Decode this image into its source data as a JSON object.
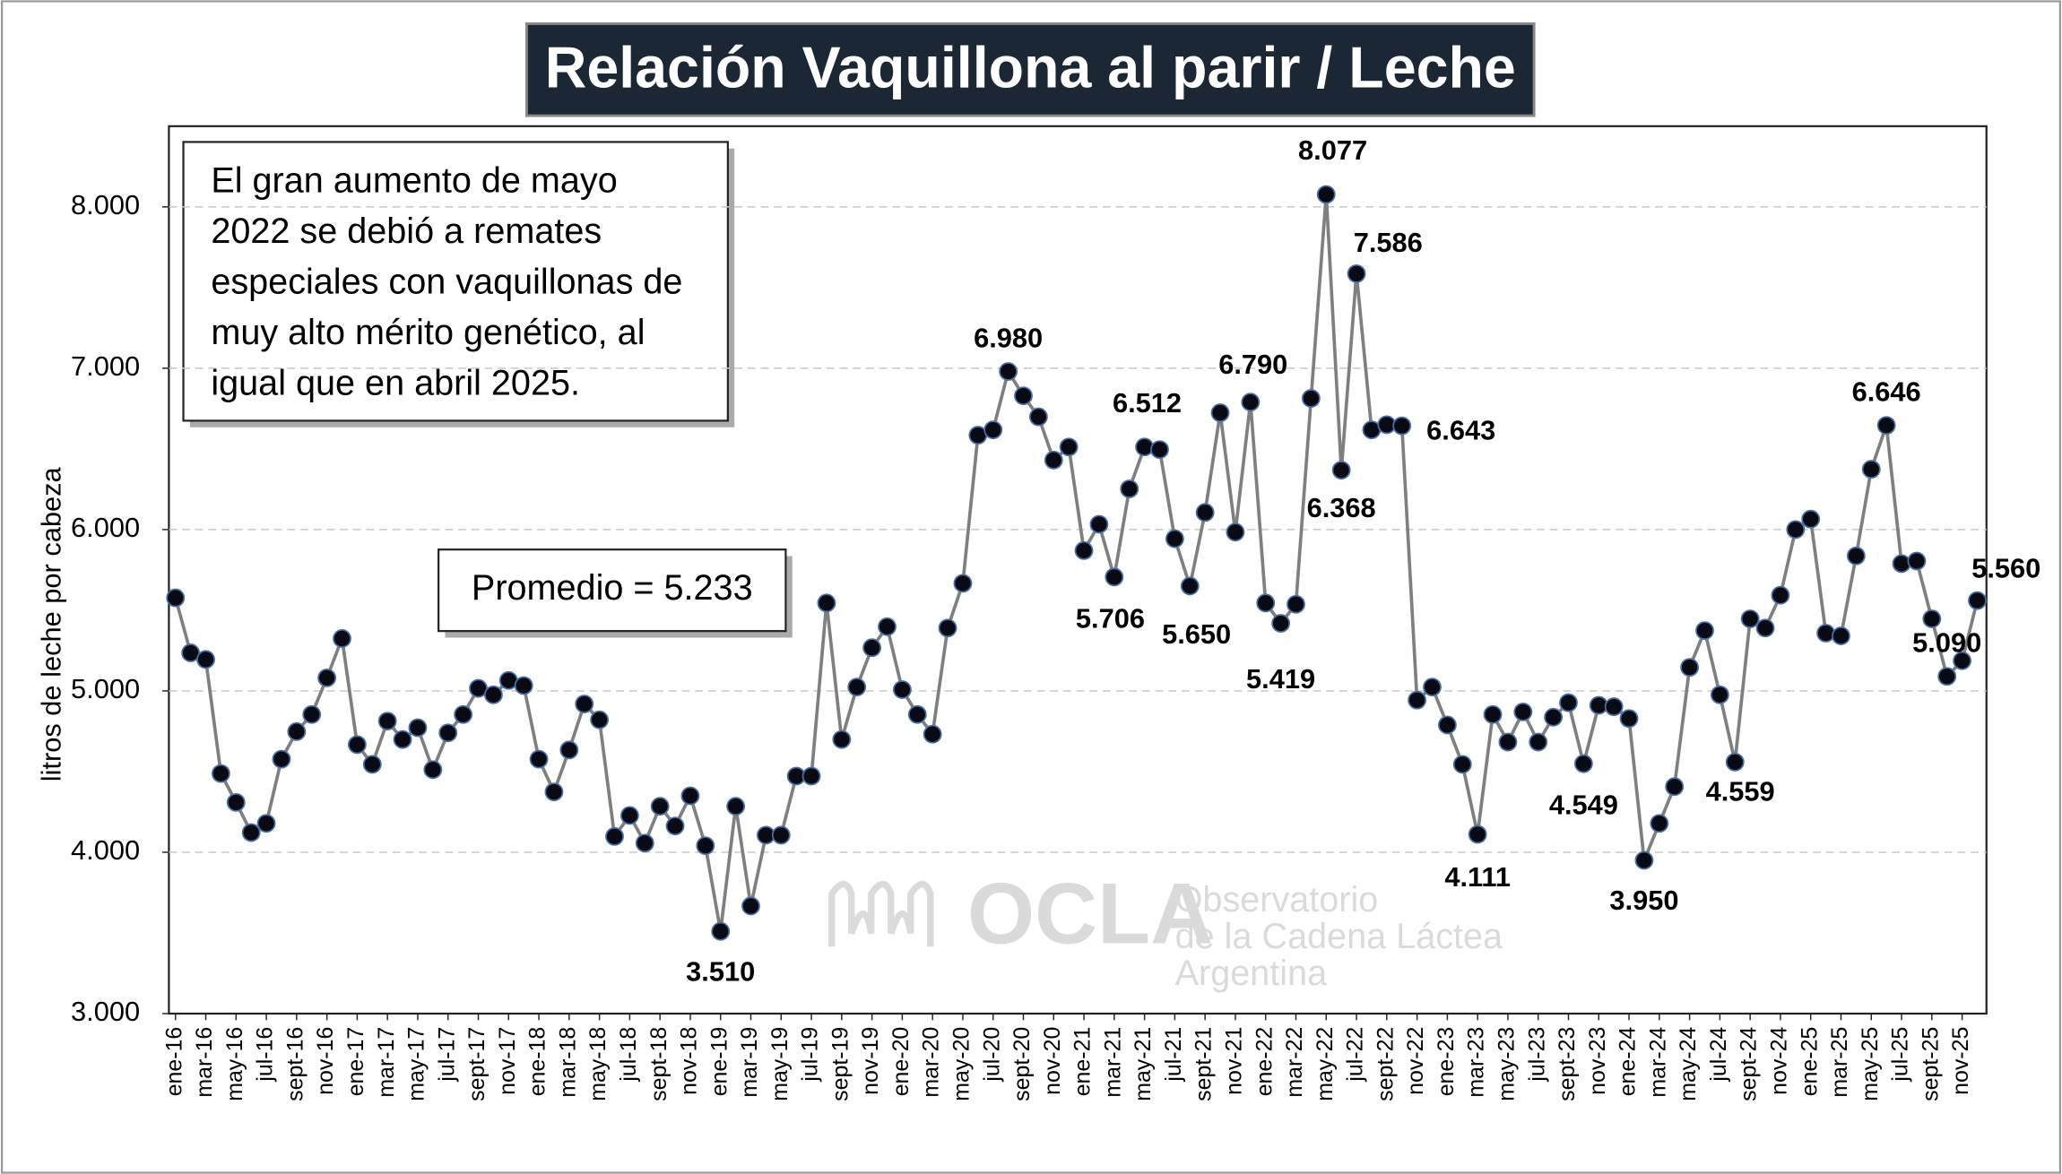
{
  "chart_data": {
    "type": "line",
    "title": "Relación Vaquillona al parir / Leche",
    "y_label": "litros de leche por cabeza",
    "categories": [
      "ene-16",
      null,
      "mar-16",
      null,
      "may-16",
      null,
      "jul-16",
      null,
      "sept-16",
      null,
      "nov-16",
      null,
      "ene-17",
      null,
      "mar-17",
      null,
      "may-17",
      null,
      "jul-17",
      null,
      "sept-17",
      null,
      "nov-17",
      null,
      "ene-18",
      null,
      "mar-18",
      null,
      "may-18",
      null,
      "jul-18",
      null,
      "sept-18",
      null,
      "nov-18",
      null,
      "ene-19",
      null,
      "mar-19",
      null,
      "may-19",
      null,
      "jul-19",
      null,
      "sept-19",
      null,
      "nov-19",
      null,
      "ene-20",
      null,
      "mar-20",
      null,
      "may-20",
      null,
      "jul-20",
      null,
      "sept-20",
      null,
      "nov-20",
      null,
      "ene-21",
      null,
      "mar-21",
      null,
      "may-21",
      null,
      "jul-21",
      null,
      "sept-21",
      null,
      "nov-21",
      null,
      "ene-22",
      null,
      "mar-22",
      null,
      "may-22",
      null,
      "jul-22",
      null,
      "sept-22",
      null,
      "nov-22",
      null,
      "ene-23",
      null,
      "mar-23",
      null,
      "may-23",
      null,
      "jul-23",
      null,
      "sept-23",
      null,
      "nov-23",
      null,
      "ene-24",
      null,
      "mar-24",
      null,
      "may-24",
      null,
      "jul-24",
      null,
      "sept-24",
      null,
      "nov-24",
      null,
      "ene-25",
      null,
      "mar-25",
      null,
      "may-25",
      null,
      "jul-25",
      null,
      "sept-25",
      null,
      "nov-25",
      null
    ],
    "series": [
      {
        "name": "Relación Vaquillona al parir / Leche",
        "color": "#7f7f7f",
        "marker_color": "#0a0a14",
        "values": [
          5577,
          5236,
          5195,
          4488,
          4309,
          4122,
          4179,
          4577,
          4748,
          4854,
          5081,
          5325,
          4667,
          4545,
          4813,
          4699,
          4772,
          4512,
          4740,
          4854,
          5016,
          4976,
          5065,
          5033,
          4577,
          4374,
          4634,
          4919,
          4821,
          4098,
          4228,
          4057,
          4285,
          4163,
          4350,
          4041,
          3510,
          4285,
          3667,
          4106,
          4106,
          4472,
          4472,
          5545,
          4699,
          5024,
          5268,
          5398,
          5008,
          4854,
          4732,
          5390,
          5667,
          6585,
          6618,
          6980,
          6829,
          6699,
          6431,
          6512,
          5870,
          6033,
          5706,
          6252,
          6512,
          6496,
          5943,
          5650,
          6106,
          6724,
          5984,
          6790,
          5545,
          5419,
          5537,
          6813,
          8077,
          6368,
          7586,
          6618,
          6650,
          6643,
          4943,
          5024,
          4789,
          4545,
          4111,
          4854,
          4683,
          4870,
          4683,
          4837,
          4927,
          4549,
          4911,
          4902,
          4829,
          3950,
          4179,
          4407,
          5146,
          5374,
          4976,
          4559,
          5447,
          5390,
          5593,
          6000,
          6065,
          5358,
          5341,
          5837,
          6374,
          6646,
          5789,
          5805,
          5447,
          5090,
          5187,
          5560
        ],
        "value_labels": [
          null,
          null,
          null,
          null,
          null,
          null,
          null,
          null,
          null,
          null,
          null,
          null,
          null,
          null,
          null,
          null,
          null,
          null,
          null,
          null,
          null,
          null,
          null,
          null,
          null,
          null,
          null,
          null,
          null,
          null,
          null,
          null,
          null,
          null,
          null,
          null,
          "3.510",
          null,
          null,
          null,
          null,
          null,
          null,
          null,
          null,
          null,
          null,
          null,
          null,
          null,
          null,
          null,
          null,
          null,
          null,
          "6.980",
          null,
          null,
          null,
          null,
          null,
          null,
          "5.706",
          null,
          "6.512",
          null,
          null,
          "5.650",
          null,
          null,
          null,
          "6.790",
          null,
          "5.419",
          null,
          null,
          "8.077",
          "6.368",
          "7.586",
          null,
          null,
          "6.643",
          null,
          null,
          null,
          null,
          "4.111",
          null,
          null,
          null,
          null,
          null,
          null,
          "4.549",
          null,
          null,
          null,
          "3.950",
          null,
          null,
          null,
          null,
          null,
          "4.559",
          null,
          null,
          null,
          null,
          null,
          null,
          null,
          null,
          null,
          "6.646",
          null,
          null,
          null,
          "5.090",
          null,
          "5.560"
        ]
      }
    ],
    "ylim": [
      3000,
      8500
    ],
    "yticks": [
      {
        "value": 3000,
        "label": "3.000"
      },
      {
        "value": 4000,
        "label": "4.000"
      },
      {
        "value": 5000,
        "label": "5.000"
      },
      {
        "value": 6000,
        "label": "6.000"
      },
      {
        "value": 7000,
        "label": "7.000"
      },
      {
        "value": 8000,
        "label": "8.000"
      }
    ],
    "grid": true,
    "note": [
      "El gran  aumento de mayo",
      "2022  se debió a remates",
      "especiales con vaquillonas de",
      "muy alto mérito genético, al",
      "igual que en abril 2025."
    ],
    "average_label": "Promedio = 5.233",
    "watermark": {
      "logo": "OCLA",
      "lines": [
        "Observatorio",
        "de la Cadena Láctea",
        "Argentina"
      ]
    }
  }
}
